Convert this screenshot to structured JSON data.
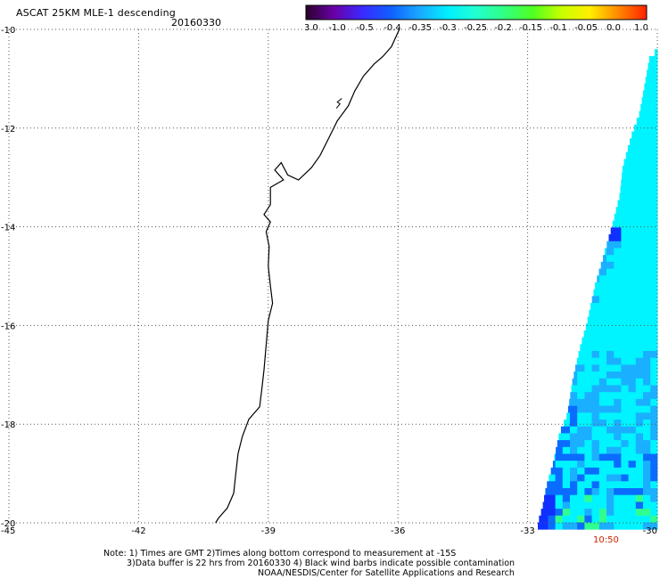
{
  "header": {
    "title": "ASCAT 25KM MLE-1 descending",
    "date": "20160330"
  },
  "colorbar": {
    "tick_labels": [
      "-3.0",
      "-1.0",
      "-0.5",
      "-0.4",
      "-0.35",
      "-0.3",
      "-0.25",
      "-0.2",
      "-0.15",
      "-0.1",
      "-0.05",
      "0.0",
      "1.0"
    ],
    "colors": [
      "#2a002a",
      "#6a00a8",
      "#3a2aff",
      "#1060ff",
      "#1aa8ff",
      "#00f0ff",
      "#22ffd0",
      "#30ff80",
      "#50ff20",
      "#c8ff00",
      "#ffee00",
      "#ff8800",
      "#ff2200"
    ]
  },
  "map": {
    "lon_ticks": [
      "-45",
      "-42",
      "-39",
      "-36",
      "-33",
      "-30"
    ],
    "lat_ticks": [
      "-10",
      "-12",
      "-14",
      "-16",
      "-18",
      "-20"
    ],
    "lon_range": [
      -45,
      -30
    ],
    "lat_range": [
      -20,
      -10
    ],
    "grid": "dotted",
    "coastline_color": "#000000",
    "swath_colors": {
      "main": "#00f4ff",
      "low": "#1ab0ff",
      "lower": "#0a6cff",
      "lowest": "#1030ff",
      "green": "#30ff90"
    },
    "swath_time": "10:50"
  },
  "notes": {
    "line1": "Note: 1) Times are GMT 2)Times along bottom correspond to measurement at -15S",
    "line2": "3)Data buffer is 22 hrs from 20160330 4) Black wind barbs indicate possible contamination",
    "line3": "NOAA/NESDIS/Center for Satellite Applications and Research"
  }
}
